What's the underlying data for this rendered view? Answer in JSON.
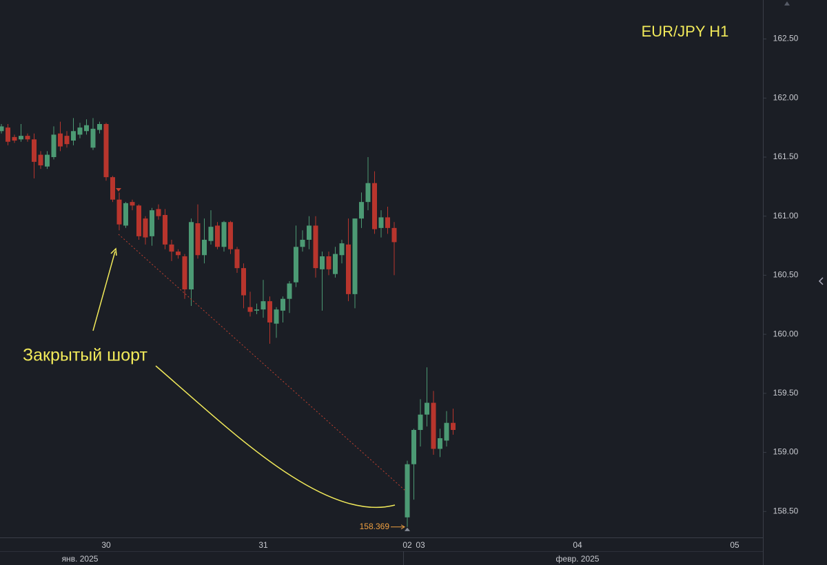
{
  "chart_data": {
    "type": "candlestick",
    "title": "EUR/JPY H1",
    "annotation": "Закрытый шорт",
    "up_color": "#4c9a74",
    "down_color": "#b8352d",
    "ylim": [
      158.28,
      162.83
    ],
    "yticks": [
      {
        "value": 158.5,
        "label": "158.50"
      },
      {
        "value": 159,
        "label": "159.00"
      },
      {
        "value": 159.5,
        "label": "159.50"
      },
      {
        "value": 160,
        "label": "160.00"
      },
      {
        "value": 160.5,
        "label": "160.50"
      },
      {
        "value": 161,
        "label": "161.00"
      },
      {
        "value": 161.5,
        "label": "161.50"
      },
      {
        "value": 162,
        "label": "162.00"
      },
      {
        "value": 162.5,
        "label": "162.50"
      }
    ],
    "categories": [
      null,
      null,
      null,
      null,
      null,
      null,
      null,
      null,
      null,
      null,
      null,
      null,
      null,
      null,
      null,
      null,
      "30",
      null,
      null,
      null,
      null,
      null,
      null,
      null,
      null,
      null,
      null,
      null,
      null,
      null,
      null,
      null,
      null,
      null,
      null,
      null,
      null,
      null,
      null,
      null,
      "31",
      null,
      null,
      null,
      null,
      null,
      null,
      null,
      null,
      null,
      null,
      null,
      null,
      null,
      null,
      null,
      null,
      null,
      null,
      null,
      null,
      null,
      "02",
      null,
      "03",
      null,
      null,
      null,
      null,
      null,
      null,
      null,
      null,
      null,
      null,
      null,
      null,
      null,
      null,
      null,
      null,
      null,
      null,
      null,
      null,
      null,
      null,
      null,
      "04",
      null,
      null,
      null,
      null,
      null,
      null,
      null,
      null,
      null,
      null,
      null,
      null,
      null,
      null,
      null,
      null,
      null,
      null,
      null,
      null,
      null,
      null,
      null,
      "05",
      null,
      null,
      null
    ],
    "month_labels": [
      null,
      null,
      null,
      null,
      null,
      null,
      null,
      null,
      null,
      null,
      null,
      null,
      "янв. 2025",
      null,
      null,
      null,
      null,
      null,
      null,
      null,
      null,
      null,
      null,
      null,
      null,
      null,
      null,
      null,
      null,
      null,
      null,
      null,
      null,
      null,
      null,
      null,
      null,
      null,
      null,
      null,
      null,
      null,
      null,
      null,
      null,
      null,
      null,
      null,
      null,
      null,
      null,
      null,
      null,
      null,
      null,
      null,
      null,
      null,
      null,
      null,
      null,
      null,
      null,
      null,
      null,
      null,
      null,
      null,
      null,
      null,
      null,
      null,
      null,
      null,
      null,
      null,
      null,
      null,
      null,
      null,
      null,
      null,
      null,
      null,
      null,
      null,
      null,
      null,
      "февр. 2025",
      null,
      null,
      null,
      null,
      null,
      null,
      null,
      null,
      null,
      null,
      null,
      null,
      null,
      null,
      null,
      null,
      null,
      null,
      null,
      null,
      null,
      null,
      null,
      null,
      null,
      null,
      null
    ],
    "open": [
      161.72,
      161.75,
      161.67,
      161.65,
      161.68,
      161.65,
      161.52,
      161.42,
      161.5,
      161.7,
      161.68,
      161.64,
      161.69,
      161.72,
      161.58,
      161.73,
      161.78,
      161.33,
      161.14,
      160.92,
      161.12,
      161.09,
      160.98,
      160.83,
      161.06,
      161.01,
      160.76,
      160.7,
      160.66,
      160.38,
      160.94,
      160.67,
      160.79,
      160.92,
      160.74,
      160.95,
      160.72,
      160.56,
      160.23,
      160.2,
      160.21,
      160.28,
      160.09,
      160.2,
      160.3,
      160.44,
      160.74,
      160.8,
      160.92,
      160.55,
      160.66,
      160.51,
      160.67,
      160.76,
      160.34,
      160.98,
      161.12,
      161.28,
      160.9,
      160.99,
      160.9,
      null,
      158.45,
      158.9,
      159.19,
      159.32,
      159.42,
      159.03,
      159.1,
      159.25,
      null,
      null,
      null,
      null,
      null,
      null,
      null,
      null,
      null,
      null,
      null,
      null,
      null,
      null,
      null,
      null,
      null,
      null,
      null,
      null,
      null,
      null,
      null,
      null,
      null,
      null,
      null,
      null,
      null,
      null,
      null,
      null,
      null,
      null,
      null,
      null,
      null,
      null,
      null,
      null,
      null,
      null,
      null,
      null,
      null,
      null
    ],
    "high": [
      161.78,
      161.78,
      161.69,
      161.78,
      161.7,
      161.7,
      161.55,
      161.55,
      161.76,
      161.8,
      161.72,
      161.83,
      161.79,
      161.82,
      161.83,
      161.8,
      161.79,
      161.34,
      161.2,
      161.12,
      161.14,
      161.1,
      161.0,
      161.07,
      161.1,
      161.06,
      160.8,
      160.72,
      160.68,
      160.98,
      161.1,
      160.98,
      161.05,
      160.95,
      160.96,
      160.96,
      160.74,
      160.6,
      160.36,
      160.26,
      160.46,
      160.32,
      160.23,
      160.32,
      160.45,
      160.92,
      160.88,
      161.0,
      161.0,
      160.7,
      160.7,
      160.74,
      160.8,
      160.98,
      160.98,
      161.2,
      161.5,
      161.38,
      161.05,
      161.08,
      160.95,
      null,
      158.93,
      159.2,
      159.45,
      159.72,
      159.52,
      159.2,
      159.35,
      159.37,
      null,
      null,
      null,
      null,
      null,
      null,
      null,
      null,
      null,
      null,
      null,
      null,
      null,
      null,
      null,
      null,
      null,
      null,
      null,
      null,
      null,
      null,
      null,
      null,
      null,
      null,
      null,
      null,
      null,
      null,
      null,
      null,
      null,
      null,
      null,
      null,
      null,
      null,
      null,
      null,
      null,
      null,
      null,
      null,
      null,
      null
    ],
    "low": [
      161.7,
      161.6,
      161.62,
      161.63,
      161.63,
      161.32,
      161.4,
      161.4,
      161.48,
      161.55,
      161.58,
      161.6,
      161.66,
      161.69,
      161.56,
      161.7,
      161.3,
      161.12,
      160.88,
      160.9,
      161.05,
      160.8,
      160.76,
      160.75,
      160.97,
      160.72,
      160.62,
      160.64,
      160.3,
      160.24,
      160.64,
      160.6,
      160.76,
      160.72,
      160.7,
      160.68,
      160.52,
      160.22,
      160.15,
      160.17,
      160.14,
      159.92,
      159.97,
      160.1,
      160.18,
      160.4,
      160.7,
      160.72,
      160.48,
      160.2,
      160.5,
      160.48,
      160.6,
      160.28,
      160.22,
      160.9,
      161.05,
      160.85,
      160.82,
      160.85,
      160.5,
      null,
      158.369,
      158.6,
      159.05,
      159.22,
      158.98,
      158.96,
      159.05,
      159.15,
      null,
      null,
      null,
      null,
      null,
      null,
      null,
      null,
      null,
      null,
      null,
      null,
      null,
      null,
      null,
      null,
      null,
      null,
      null,
      null,
      null,
      null,
      null,
      null,
      null,
      null,
      null,
      null,
      null,
      null,
      null,
      null,
      null,
      null,
      null,
      null,
      null,
      null,
      null,
      null,
      null,
      null,
      null,
      null,
      null,
      null
    ],
    "close": [
      161.76,
      161.63,
      161.64,
      161.68,
      161.65,
      161.46,
      161.43,
      161.52,
      161.69,
      161.59,
      161.61,
      161.72,
      161.75,
      161.77,
      161.74,
      161.78,
      161.33,
      161.14,
      160.93,
      161.11,
      161.09,
      160.83,
      160.82,
      161.05,
      161.0,
      160.76,
      160.7,
      160.67,
      160.38,
      160.95,
      160.67,
      160.8,
      160.91,
      160.74,
      160.95,
      160.72,
      160.56,
      160.33,
      160.19,
      160.21,
      160.28,
      160.1,
      160.21,
      160.3,
      160.43,
      160.74,
      160.8,
      160.92,
      160.56,
      160.66,
      160.55,
      160.68,
      160.77,
      160.34,
      160.98,
      161.12,
      161.28,
      160.89,
      160.99,
      160.9,
      160.78,
      null,
      158.9,
      159.19,
      159.32,
      159.42,
      159.03,
      159.12,
      159.25,
      159.19,
      null,
      null,
      null,
      null,
      null,
      null,
      null,
      null,
      null,
      null,
      null,
      null,
      null,
      null,
      null,
      null,
      null,
      null,
      null,
      null,
      null,
      null,
      null,
      null,
      null,
      null,
      null,
      null,
      null,
      null,
      null,
      null,
      null,
      null,
      null,
      null,
      null,
      null,
      null,
      null,
      null,
      null,
      null,
      null,
      null,
      null
    ]
  }
}
